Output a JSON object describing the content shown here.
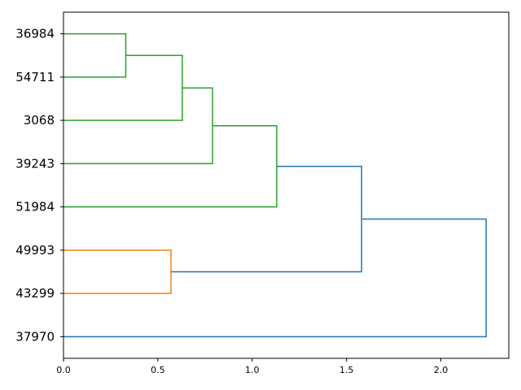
{
  "chart_data": {
    "type": "dendrogram",
    "orientation": "horizontal",
    "title": "",
    "xlabel": "",
    "ylabel": "",
    "xlim": [
      0,
      2.36
    ],
    "x_ticks": [
      0.0,
      0.5,
      1.0,
      1.5,
      2.0
    ],
    "x_tick_labels": [
      "0.0",
      "0.5",
      "1.0",
      "1.5",
      "2.0"
    ],
    "leaves": [
      "36984",
      "54711",
      "3068",
      "39243",
      "51984",
      "49993",
      "43299",
      "37970"
    ],
    "merges": [
      {
        "children": [
          "36984",
          "54711"
        ],
        "height": 0.33,
        "color": "#2ca02c"
      },
      {
        "children": [
          "36984+54711",
          "3068"
        ],
        "height": 0.63,
        "color": "#2ca02c"
      },
      {
        "children": [
          "36984+54711+3068",
          "39243"
        ],
        "height": 0.79,
        "color": "#2ca02c"
      },
      {
        "children": [
          "36984+54711+3068+39243",
          "51984"
        ],
        "height": 1.13,
        "color": "#2ca02c"
      },
      {
        "children": [
          "49993",
          "43299"
        ],
        "height": 0.57,
        "color": "#ff7f0e"
      },
      {
        "children": [
          "green-cluster",
          "orange-cluster"
        ],
        "height": 1.58,
        "color": "#1f77b4"
      },
      {
        "children": [
          "combined-cluster",
          "37970"
        ],
        "height": 2.24,
        "color": "#1f77b4"
      }
    ],
    "colors": {
      "cluster_1": "#2ca02c",
      "cluster_2": "#ff7f0e",
      "above_threshold": "#1f77b4"
    }
  }
}
